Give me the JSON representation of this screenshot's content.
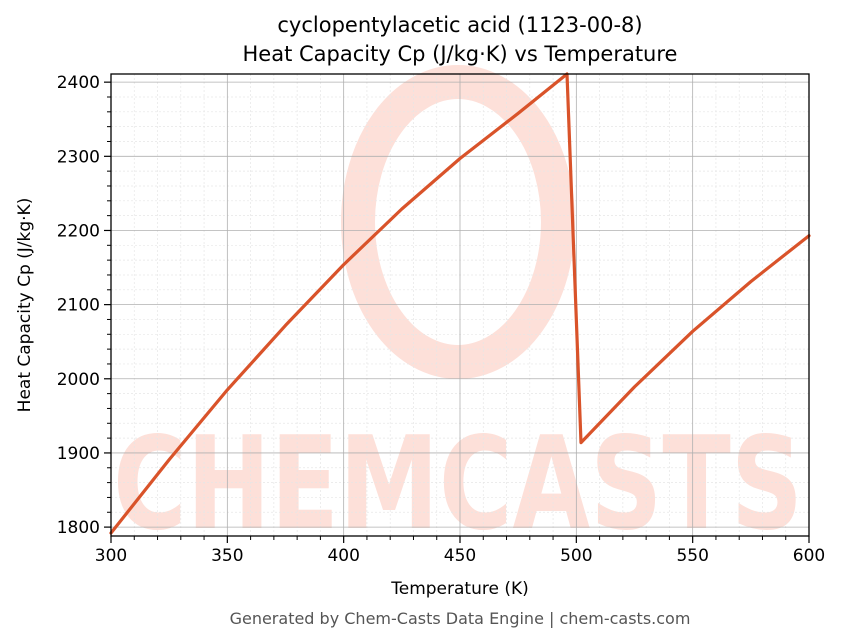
{
  "chart_data": {
    "type": "line",
    "title_line1": "cyclopentylacetic acid (1123-00-8)",
    "title_line2": "Heat Capacity Cp (J/kg·K) vs Temperature",
    "xlabel": "Temperature (K)",
    "ylabel": "Heat Capacity Cp (J/kg·K)",
    "xlim": [
      300,
      600
    ],
    "ylim": [
      1788,
      2411
    ],
    "xticks": [
      300,
      350,
      400,
      450,
      500,
      550,
      600
    ],
    "yticks": [
      1800,
      1900,
      2000,
      2100,
      2200,
      2300,
      2400
    ],
    "grid": true,
    "series": [
      {
        "color": "#d9532a",
        "x": [
          300,
          325,
          350,
          375,
          400,
          425,
          450,
          475,
          496,
          502,
          525,
          550,
          575,
          600
        ],
        "y": [
          1792,
          1891,
          1985,
          2072,
          2154,
          2229,
          2297,
          2358,
          2411,
          1914,
          1989,
          2064,
          2131,
          2193
        ]
      }
    ]
  },
  "watermark": {
    "text": "CHEMCASTS",
    "color": "#fde0d9"
  },
  "footer": "Generated by Chem-Casts Data Engine | chem-casts.com"
}
